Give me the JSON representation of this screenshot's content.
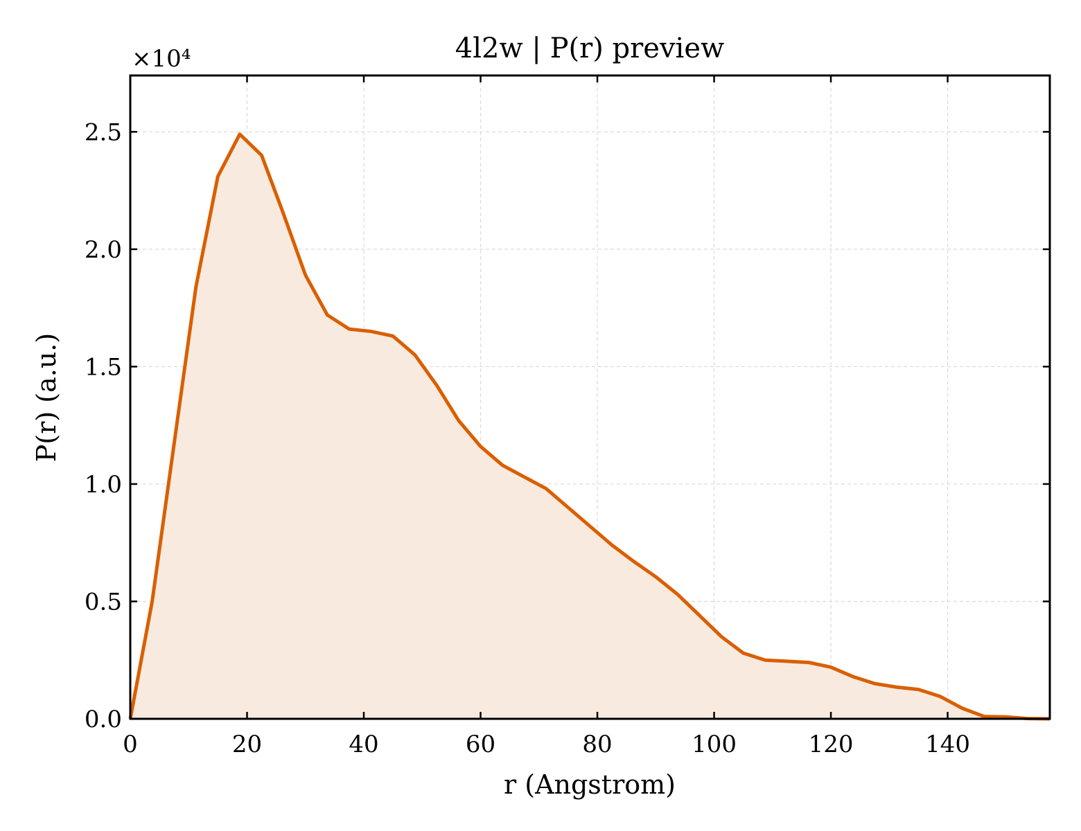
{
  "colors": {
    "line": "#d95f02",
    "fill": "#f9eadf",
    "grid": "#d9d9d9",
    "axis": "#000000"
  },
  "chart_data": {
    "type": "area",
    "title": "4l2w | P(r) preview",
    "xlabel": "r (Angstrom)",
    "ylabel": "P(r) (a.u.)",
    "y_multiplier_label": "×10⁴",
    "xlim": [
      0,
      157.5
    ],
    "ylim": [
      0,
      2.74
    ],
    "grid": true,
    "x_ticks": [
      0,
      20,
      40,
      60,
      80,
      100,
      120,
      140
    ],
    "x_tick_labels": [
      "0",
      "20",
      "40",
      "60",
      "80",
      "100",
      "120",
      "140"
    ],
    "y_ticks": [
      0,
      0.5,
      1.0,
      1.5,
      2.0,
      2.5
    ],
    "y_tick_labels": [
      "0.0",
      "0.5",
      "1.0",
      "1.5",
      "2.0",
      "2.5"
    ],
    "series": [
      {
        "x": [
          0,
          3.75,
          7.5,
          11.25,
          15,
          18.75,
          22.5,
          26.25,
          30,
          33.75,
          37.5,
          41.25,
          45,
          48.75,
          52.5,
          56.25,
          60,
          63.75,
          67.5,
          71.25,
          75,
          78.75,
          82.5,
          86.25,
          90,
          93.75,
          97.5,
          101.25,
          105,
          108.75,
          112.5,
          116.25,
          120,
          123.75,
          127.5,
          131.25,
          135,
          138.75,
          142.5,
          146.25,
          150,
          153.75,
          157.5
        ],
        "y": [
          0,
          0.5,
          1.17,
          1.84,
          2.31,
          2.49,
          2.4,
          2.15,
          1.89,
          1.72,
          1.66,
          1.65,
          1.63,
          1.55,
          1.42,
          1.27,
          1.16,
          1.08,
          1.03,
          0.98,
          0.9,
          0.82,
          0.74,
          0.67,
          0.605,
          0.53,
          0.44,
          0.35,
          0.28,
          0.25,
          0.245,
          0.24,
          0.22,
          0.18,
          0.15,
          0.135,
          0.125,
          0.095,
          0.045,
          0.01,
          0.008,
          0.001,
          0.0
        ]
      }
    ]
  }
}
